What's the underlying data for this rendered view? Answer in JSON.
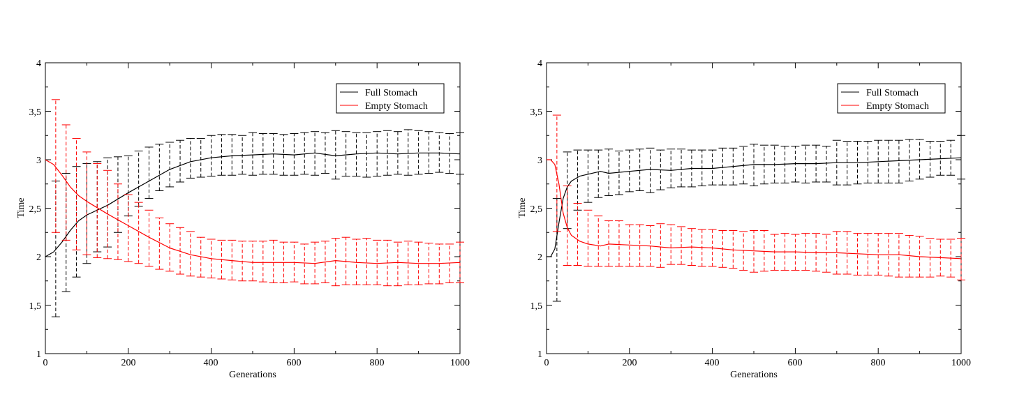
{
  "chart_data": [
    {
      "type": "line",
      "panel": "left",
      "title": "",
      "xlabel": "Generations",
      "ylabel": "Time",
      "xlim": [
        0,
        1000
      ],
      "ylim": [
        1,
        4
      ],
      "xticks": [
        0,
        200,
        400,
        600,
        800,
        1000
      ],
      "xtick_labels": [
        "0",
        "200",
        "400",
        "600",
        "800",
        "1000"
      ],
      "yticks": [
        1,
        1.5,
        2,
        2.5,
        3,
        3.5,
        4
      ],
      "ytick_labels": [
        "1",
        "1,5",
        "2",
        "2,5",
        "3",
        "3,5",
        "4"
      ],
      "grid": false,
      "legend_position": "top-right",
      "series": [
        {
          "name": "Full Stomach",
          "color": "#000000",
          "x": [
            0,
            20,
            40,
            60,
            80,
            100,
            150,
            200,
            250,
            300,
            350,
            400,
            450,
            500,
            550,
            600,
            650,
            700,
            750,
            800,
            850,
            900,
            950,
            1000
          ],
          "y": [
            2.0,
            2.05,
            2.15,
            2.27,
            2.37,
            2.43,
            2.53,
            2.66,
            2.78,
            2.9,
            2.98,
            3.02,
            3.04,
            3.05,
            3.06,
            3.05,
            3.07,
            3.04,
            3.06,
            3.07,
            3.06,
            3.07,
            3.07,
            3.06
          ],
          "err_x": [
            25,
            50,
            75,
            100,
            125,
            150,
            175,
            200,
            225,
            250,
            275,
            300,
            325,
            350,
            375,
            400,
            425,
            450,
            475,
            500,
            525,
            550,
            575,
            600,
            625,
            650,
            675,
            700,
            725,
            750,
            775,
            800,
            825,
            850,
            875,
            900,
            925,
            950,
            975,
            1000
          ],
          "err_lower": [
            1.38,
            1.64,
            1.79,
            1.93,
            2.05,
            2.1,
            2.25,
            2.42,
            2.52,
            2.6,
            2.68,
            2.72,
            2.77,
            2.81,
            2.82,
            2.83,
            2.84,
            2.84,
            2.85,
            2.84,
            2.85,
            2.85,
            2.84,
            2.84,
            2.85,
            2.84,
            2.86,
            2.8,
            2.83,
            2.83,
            2.82,
            2.83,
            2.84,
            2.85,
            2.84,
            2.85,
            2.86,
            2.87,
            2.86,
            2.85
          ],
          "err_upper": [
            2.78,
            2.86,
            2.93,
            2.96,
            2.98,
            3.02,
            3.03,
            3.04,
            3.09,
            3.13,
            3.16,
            3.18,
            3.2,
            3.22,
            3.22,
            3.25,
            3.26,
            3.26,
            3.25,
            3.28,
            3.27,
            3.27,
            3.26,
            3.27,
            3.28,
            3.29,
            3.28,
            3.3,
            3.29,
            3.28,
            3.28,
            3.29,
            3.3,
            3.29,
            3.31,
            3.3,
            3.29,
            3.28,
            3.27,
            3.28
          ]
        },
        {
          "name": "Empty Stomach",
          "color": "#ff0000",
          "x": [
            0,
            20,
            40,
            60,
            80,
            100,
            150,
            200,
            250,
            300,
            350,
            400,
            450,
            500,
            550,
            600,
            650,
            700,
            750,
            800,
            850,
            900,
            950,
            1000
          ],
          "y": [
            3.0,
            2.95,
            2.84,
            2.72,
            2.63,
            2.57,
            2.44,
            2.32,
            2.2,
            2.09,
            2.02,
            1.98,
            1.96,
            1.94,
            1.94,
            1.94,
            1.93,
            1.96,
            1.94,
            1.93,
            1.94,
            1.93,
            1.93,
            1.94
          ],
          "err_x": [
            25,
            50,
            75,
            100,
            125,
            150,
            175,
            200,
            225,
            250,
            275,
            300,
            325,
            350,
            375,
            400,
            425,
            450,
            475,
            500,
            525,
            550,
            575,
            600,
            625,
            650,
            675,
            700,
            725,
            750,
            775,
            800,
            825,
            850,
            875,
            900,
            925,
            950,
            975,
            1000
          ],
          "err_lower": [
            2.25,
            2.17,
            2.07,
            2.02,
            1.99,
            1.98,
            1.97,
            1.95,
            1.93,
            1.9,
            1.87,
            1.85,
            1.82,
            1.8,
            1.79,
            1.78,
            1.77,
            1.76,
            1.75,
            1.75,
            1.74,
            1.73,
            1.73,
            1.74,
            1.72,
            1.72,
            1.73,
            1.7,
            1.71,
            1.71,
            1.71,
            1.71,
            1.7,
            1.7,
            1.71,
            1.71,
            1.72,
            1.72,
            1.73,
            1.73
          ],
          "err_upper": [
            3.62,
            3.36,
            3.22,
            3.08,
            2.96,
            2.89,
            2.75,
            2.64,
            2.56,
            2.48,
            2.4,
            2.34,
            2.3,
            2.26,
            2.2,
            2.18,
            2.17,
            2.17,
            2.16,
            2.16,
            2.16,
            2.17,
            2.15,
            2.15,
            2.13,
            2.15,
            2.16,
            2.19,
            2.2,
            2.18,
            2.19,
            2.17,
            2.17,
            2.15,
            2.16,
            2.15,
            2.14,
            2.13,
            2.13,
            2.15
          ]
        }
      ]
    },
    {
      "type": "line",
      "panel": "right",
      "title": "",
      "xlabel": "Generations",
      "ylabel": "Time",
      "xlim": [
        0,
        1000
      ],
      "ylim": [
        1,
        4
      ],
      "xticks": [
        0,
        200,
        400,
        600,
        800,
        1000
      ],
      "xtick_labels": [
        "0",
        "200",
        "400",
        "600",
        "800",
        "1000"
      ],
      "yticks": [
        1,
        1.5,
        2,
        2.5,
        3,
        3.5,
        4
      ],
      "ytick_labels": [
        "1",
        "1,5",
        "2",
        "2,5",
        "3",
        "3,5",
        "4"
      ],
      "grid": false,
      "legend_position": "top-right",
      "series": [
        {
          "name": "Full Stomach",
          "color": "#000000",
          "x": [
            0,
            10,
            20,
            30,
            40,
            50,
            60,
            80,
            100,
            130,
            150,
            200,
            250,
            300,
            350,
            400,
            450,
            500,
            550,
            600,
            650,
            700,
            750,
            800,
            850,
            900,
            950,
            1000
          ],
          "y": [
            2.0,
            2.0,
            2.08,
            2.35,
            2.6,
            2.72,
            2.78,
            2.83,
            2.85,
            2.88,
            2.86,
            2.88,
            2.9,
            2.89,
            2.91,
            2.91,
            2.93,
            2.95,
            2.95,
            2.96,
            2.96,
            2.97,
            2.97,
            2.98,
            2.99,
            3.0,
            3.01,
            3.02
          ],
          "err_x": [
            25,
            50,
            75,
            100,
            125,
            150,
            175,
            200,
            225,
            250,
            275,
            300,
            325,
            350,
            375,
            400,
            425,
            450,
            475,
            500,
            525,
            550,
            575,
            600,
            625,
            650,
            675,
            700,
            725,
            750,
            775,
            800,
            825,
            850,
            875,
            900,
            925,
            950,
            975,
            1000
          ],
          "err_lower": [
            1.54,
            2.29,
            2.48,
            2.56,
            2.61,
            2.63,
            2.64,
            2.67,
            2.68,
            2.66,
            2.69,
            2.71,
            2.72,
            2.72,
            2.73,
            2.74,
            2.74,
            2.74,
            2.75,
            2.73,
            2.75,
            2.76,
            2.76,
            2.77,
            2.76,
            2.77,
            2.77,
            2.74,
            2.74,
            2.75,
            2.76,
            2.76,
            2.76,
            2.76,
            2.78,
            2.8,
            2.82,
            2.84,
            2.84,
            2.8
          ],
          "err_upper": [
            2.6,
            3.08,
            3.1,
            3.1,
            3.1,
            3.11,
            3.09,
            3.1,
            3.11,
            3.12,
            3.1,
            3.11,
            3.11,
            3.1,
            3.1,
            3.1,
            3.12,
            3.12,
            3.14,
            3.16,
            3.15,
            3.15,
            3.14,
            3.14,
            3.15,
            3.15,
            3.14,
            3.2,
            3.19,
            3.19,
            3.19,
            3.2,
            3.2,
            3.2,
            3.21,
            3.21,
            3.19,
            3.19,
            3.2,
            3.25
          ]
        },
        {
          "name": "Empty Stomach",
          "color": "#ff0000",
          "x": [
            0,
            10,
            20,
            30,
            40,
            50,
            60,
            80,
            100,
            130,
            150,
            200,
            250,
            300,
            350,
            400,
            450,
            500,
            550,
            600,
            650,
            700,
            750,
            800,
            850,
            900,
            950,
            1000
          ],
          "y": [
            3.0,
            3.0,
            2.95,
            2.75,
            2.45,
            2.3,
            2.22,
            2.16,
            2.13,
            2.11,
            2.13,
            2.12,
            2.11,
            2.09,
            2.1,
            2.09,
            2.07,
            2.06,
            2.05,
            2.05,
            2.04,
            2.04,
            2.03,
            2.02,
            2.02,
            2.0,
            1.99,
            1.98
          ],
          "err_x": [
            25,
            50,
            75,
            100,
            125,
            150,
            175,
            200,
            225,
            250,
            275,
            300,
            325,
            350,
            375,
            400,
            425,
            450,
            475,
            500,
            525,
            550,
            575,
            600,
            625,
            650,
            675,
            700,
            725,
            750,
            775,
            800,
            825,
            850,
            875,
            900,
            925,
            950,
            975,
            1000
          ],
          "err_lower": [
            2.26,
            1.91,
            1.91,
            1.9,
            1.9,
            1.9,
            1.9,
            1.9,
            1.9,
            1.9,
            1.89,
            1.92,
            1.92,
            1.91,
            1.9,
            1.9,
            1.89,
            1.88,
            1.86,
            1.84,
            1.85,
            1.86,
            1.86,
            1.86,
            1.86,
            1.85,
            1.84,
            1.82,
            1.82,
            1.81,
            1.81,
            1.81,
            1.8,
            1.79,
            1.79,
            1.79,
            1.79,
            1.8,
            1.79,
            1.76
          ],
          "err_upper": [
            3.46,
            2.73,
            2.55,
            2.48,
            2.42,
            2.37,
            2.37,
            2.33,
            2.33,
            2.32,
            2.34,
            2.33,
            2.31,
            2.29,
            2.28,
            2.28,
            2.27,
            2.27,
            2.26,
            2.27,
            2.27,
            2.23,
            2.24,
            2.23,
            2.24,
            2.24,
            2.23,
            2.26,
            2.26,
            2.24,
            2.24,
            2.24,
            2.24,
            2.24,
            2.22,
            2.21,
            2.19,
            2.18,
            2.18,
            2.19
          ]
        }
      ]
    }
  ]
}
